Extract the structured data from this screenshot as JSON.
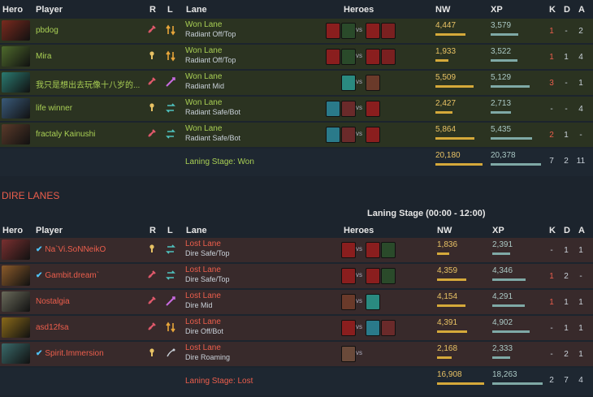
{
  "columns": {
    "hero": "Hero",
    "player": "Player",
    "role": "R",
    "lane_icon": "L",
    "lane": "Lane",
    "heroes": "Heroes",
    "nw": "NW",
    "xp": "XP",
    "k": "K",
    "d": "D",
    "a": "A"
  },
  "radiant": {
    "rows": [
      {
        "player": "pbdog",
        "verified": false,
        "lane_result": "Won Lane",
        "lane": "Radiant Off/Top",
        "nw": "4,447",
        "nw_frac": 0.78,
        "xp": "3,579",
        "xp_frac": 0.6,
        "k": "1",
        "d": "-",
        "a": "2",
        "role": "core",
        "lane_icon": "offlane-icon",
        "portrait": "#7a2a1e"
      },
      {
        "player": "Mira",
        "verified": false,
        "lane_result": "Won Lane",
        "lane": "Radiant Off/Top",
        "nw": "1,933",
        "nw_frac": 0.34,
        "xp": "3,522",
        "xp_frac": 0.59,
        "k": "1",
        "d": "1",
        "a": "4",
        "role": "support",
        "lane_icon": "offlane-icon",
        "portrait": "#4e6a2c"
      },
      {
        "player": "我只是想出去玩像十八岁的...",
        "verified": false,
        "lane_result": "Won Lane",
        "lane": "Radiant Mid",
        "nw": "5,509",
        "nw_frac": 0.97,
        "xp": "5,129",
        "xp_frac": 0.86,
        "k": "3",
        "d": "-",
        "a": "1",
        "role": "core",
        "lane_icon": "midlane-icon",
        "portrait": "#2b7a70"
      },
      {
        "player": "life winner",
        "verified": false,
        "lane_result": "Won Lane",
        "lane": "Radiant Safe/Bot",
        "nw": "2,427",
        "nw_frac": 0.43,
        "xp": "2,713",
        "xp_frac": 0.45,
        "k": "-",
        "d": "-",
        "a": "4",
        "role": "support",
        "lane_icon": "safelane-icon",
        "portrait": "#3a5a7a"
      },
      {
        "player": "fractaly Kainushi",
        "verified": false,
        "lane_result": "Won Lane",
        "lane": "Radiant Safe/Bot",
        "nw": "5,864",
        "nw_frac": 1.0,
        "xp": "5,435",
        "xp_frac": 0.91,
        "k": "2",
        "d": "1",
        "a": "-",
        "role": "core",
        "lane_icon": "safelane-icon",
        "portrait": "#5a3a2a"
      }
    ],
    "summary": {
      "text": "Laning Stage: Won",
      "nw": "20,180",
      "xp": "20,378",
      "k": "7",
      "d": "2",
      "a": "11"
    }
  },
  "dire_section_title": "DIRE LANES",
  "stage_title": "Laning Stage (00:00 - 12:00)",
  "dire": {
    "rows": [
      {
        "player": "Na`Vi.SoNNeikO",
        "verified": true,
        "lane_result": "Lost Lane",
        "lane": "Dire Safe/Top",
        "nw": "1,836",
        "nw_frac": 0.32,
        "xp": "2,391",
        "xp_frac": 0.4,
        "k": "-",
        "d": "1",
        "a": "1",
        "role": "support",
        "lane_icon": "safelane-icon",
        "portrait": "#7a3030"
      },
      {
        "player": "Gambit.dream`",
        "verified": true,
        "lane_result": "Lost Lane",
        "lane": "Dire Safe/Top",
        "nw": "4,359",
        "nw_frac": 0.76,
        "xp": "4,346",
        "xp_frac": 0.73,
        "k": "1",
        "d": "2",
        "a": "-",
        "role": "core",
        "lane_icon": "safelane-icon",
        "portrait": "#8a5a2a"
      },
      {
        "player": "Nostalgia",
        "verified": false,
        "lane_result": "Lost Lane",
        "lane": "Dire Mid",
        "nw": "4,154",
        "nw_frac": 0.73,
        "xp": "4,291",
        "xp_frac": 0.72,
        "k": "1",
        "d": "1",
        "a": "1",
        "role": "core",
        "lane_icon": "midlane-icon",
        "portrait": "#6a6a5a"
      },
      {
        "player": "asd12fsa",
        "verified": false,
        "lane_result": "Lost Lane",
        "lane": "Dire Off/Bot",
        "nw": "4,391",
        "nw_frac": 0.77,
        "xp": "4,902",
        "xp_frac": 0.82,
        "k": "-",
        "d": "1",
        "a": "1",
        "role": "core",
        "lane_icon": "offlane-icon",
        "portrait": "#8a6a1a"
      },
      {
        "player": "Spirit.Immersion",
        "verified": true,
        "lane_result": "Lost Lane",
        "lane": "Dire Roaming",
        "nw": "2,168",
        "nw_frac": 0.38,
        "xp": "2,333",
        "xp_frac": 0.39,
        "k": "-",
        "d": "2",
        "a": "1",
        "role": "support",
        "lane_icon": "roaming-icon",
        "portrait": "#3a6a6a"
      }
    ],
    "summary": {
      "text": "Laning Stage: Lost",
      "nw": "16,908",
      "xp": "18,263",
      "k": "2",
      "d": "7",
      "a": "4"
    }
  },
  "colors": {
    "radiant": "#a9cf54",
    "dire": "#ec5e4c",
    "nw": "#e8c264",
    "xp": "#aac8c4"
  }
}
